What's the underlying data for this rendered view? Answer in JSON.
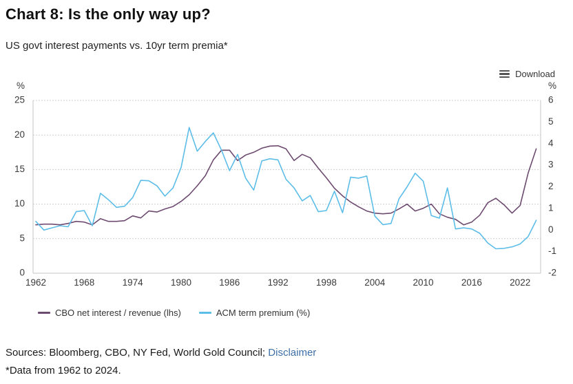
{
  "header": {
    "title": "Chart 8: Is the only way up?",
    "subtitle": "US govt interest payments vs. 10yr term premia*"
  },
  "toolbar": {
    "download_label": "Download",
    "download_icon": "hamburger-menu-icon"
  },
  "chart_data": {
    "type": "line",
    "title": "Chart 8: Is the only way up?",
    "subtitle": "US govt interest payments vs. 10yr term premia*",
    "grid": "horizontal-dotted",
    "legend_position": "bottom-left",
    "x": [
      1962,
      1963,
      1964,
      1965,
      1966,
      1967,
      1968,
      1969,
      1970,
      1971,
      1972,
      1973,
      1974,
      1975,
      1976,
      1977,
      1978,
      1979,
      1980,
      1981,
      1982,
      1983,
      1984,
      1985,
      1986,
      1987,
      1988,
      1989,
      1990,
      1991,
      1992,
      1993,
      1994,
      1995,
      1996,
      1997,
      1998,
      1999,
      2000,
      2001,
      2002,
      2003,
      2004,
      2005,
      2006,
      2007,
      2008,
      2009,
      2010,
      2011,
      2012,
      2013,
      2014,
      2015,
      2016,
      2017,
      2018,
      2019,
      2020,
      2021,
      2022,
      2023,
      2024
    ],
    "x_tick_labels": [
      "1962",
      "1968",
      "1974",
      "1980",
      "1986",
      "1992",
      "1998",
      "2004",
      "2010",
      "2016",
      "2022"
    ],
    "axes": {
      "left": {
        "label": "%",
        "min": 0,
        "max": 25,
        "ticks": [
          0,
          5,
          10,
          15,
          20,
          25
        ]
      },
      "right": {
        "label": "%",
        "min": -2,
        "max": 6,
        "ticks": [
          -2,
          -1,
          0,
          1,
          2,
          3,
          4,
          5,
          6
        ]
      }
    },
    "series": [
      {
        "name": "CBO net interest / revenue (lhs)",
        "axis": "left",
        "color": "#6d4a6f",
        "values": [
          7.0,
          7.1,
          7.1,
          7.0,
          7.2,
          7.5,
          7.4,
          7.0,
          7.9,
          7.5,
          7.5,
          7.6,
          8.3,
          8.0,
          9.0,
          8.85,
          9.3,
          9.65,
          10.4,
          11.35,
          12.65,
          14.1,
          16.4,
          17.8,
          17.8,
          16.3,
          17.1,
          17.5,
          18.1,
          18.4,
          18.45,
          18.0,
          16.3,
          17.2,
          16.7,
          15.2,
          13.8,
          12.3,
          11.2,
          10.3,
          9.6,
          9.0,
          8.7,
          8.6,
          8.7,
          9.3,
          10.0,
          9.0,
          9.4,
          10.0,
          8.6,
          8.1,
          7.8,
          7.0,
          7.4,
          8.4,
          10.2,
          10.85,
          9.9,
          8.7,
          9.8,
          14.5,
          18.0
        ]
      },
      {
        "name": "ACM term premium (%)",
        "axis": "right",
        "color": "#5cbde8",
        "values": [
          0.4,
          0.0,
          0.1,
          0.2,
          0.15,
          0.85,
          0.9,
          0.2,
          1.7,
          1.4,
          1.05,
          1.1,
          1.5,
          2.3,
          2.28,
          2.05,
          1.57,
          1.95,
          2.9,
          4.75,
          3.65,
          4.1,
          4.5,
          3.7,
          2.75,
          3.5,
          2.4,
          1.85,
          3.2,
          3.3,
          3.25,
          2.35,
          1.95,
          1.35,
          1.6,
          0.85,
          0.9,
          1.8,
          0.8,
          2.45,
          2.4,
          2.5,
          0.65,
          0.25,
          0.3,
          1.45,
          2.0,
          2.63,
          2.26,
          0.67,
          0.55,
          1.95,
          0.05,
          0.1,
          0.05,
          -0.15,
          -0.6,
          -0.87,
          -0.85,
          -0.78,
          -0.65,
          -0.3,
          0.45
        ]
      }
    ]
  },
  "footer": {
    "sources_text": "Sources: Bloomberg, CBO, NY Fed, World Gold Council; ",
    "disclaimer_label": "Disclaimer",
    "footnote": "*Data from 1962 to 2024."
  },
  "colors": {
    "series_purple": "#6d4a6f",
    "series_blue": "#5cbde8",
    "link_blue": "#3e6fa7",
    "gridline": "#cfcfcf",
    "axis_border": "#c6c6c6"
  }
}
